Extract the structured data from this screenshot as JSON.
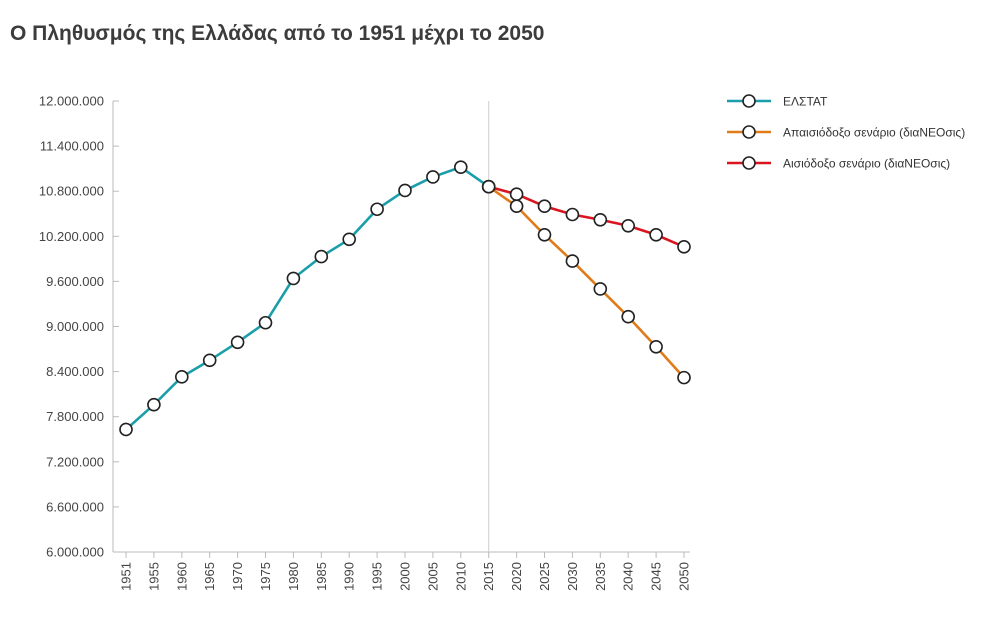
{
  "chart_data": {
    "type": "line",
    "title": "Ο Πληθυσμός της Ελλάδας από το 1951 μέχρι το 2050",
    "xlabel": "",
    "ylabel": "",
    "categories": [
      "1951",
      "1955",
      "1960",
      "1965",
      "1970",
      "1975",
      "1980",
      "1985",
      "1990",
      "1995",
      "2000",
      "2005",
      "2010",
      "2015",
      "2020",
      "2025",
      "2030",
      "2035",
      "2040",
      "2045",
      "2050"
    ],
    "y_ticks": [
      "6.000.000",
      "6.600.000",
      "7.200.000",
      "7.800.000",
      "8.400.000",
      "9.000.000",
      "9.600.000",
      "10.200.000",
      "10.800.000",
      "11.400.000",
      "12.000.000"
    ],
    "ylim": [
      6000000,
      12000000
    ],
    "grid": false,
    "legend_position": "right",
    "reference_line_at": "2015",
    "series": [
      {
        "name": "ΕΛΣΤΑΤ",
        "color": "#1a9eaa",
        "values": [
          7630000,
          7960000,
          8330000,
          8550000,
          8790000,
          9050000,
          9640000,
          9930000,
          10160000,
          10560000,
          10810000,
          10990000,
          11120000,
          10860000,
          null,
          null,
          null,
          null,
          null,
          null,
          null
        ]
      },
      {
        "name": "Απαισιόδοξο σενάριο (διαΝΕΟσις)",
        "color": "#e07b1a",
        "values": [
          null,
          null,
          null,
          null,
          null,
          null,
          null,
          null,
          null,
          null,
          null,
          null,
          null,
          10860000,
          10600000,
          10220000,
          9870000,
          9500000,
          9130000,
          8730000,
          8320000
        ]
      },
      {
        "name": "Αισιόδοξο σενάριο (διαΝΕΟσις)",
        "color": "#d9161f",
        "values": [
          null,
          null,
          null,
          null,
          null,
          null,
          null,
          null,
          null,
          null,
          null,
          null,
          null,
          10860000,
          10760000,
          10600000,
          10490000,
          10420000,
          10340000,
          10220000,
          10060000
        ]
      }
    ]
  }
}
